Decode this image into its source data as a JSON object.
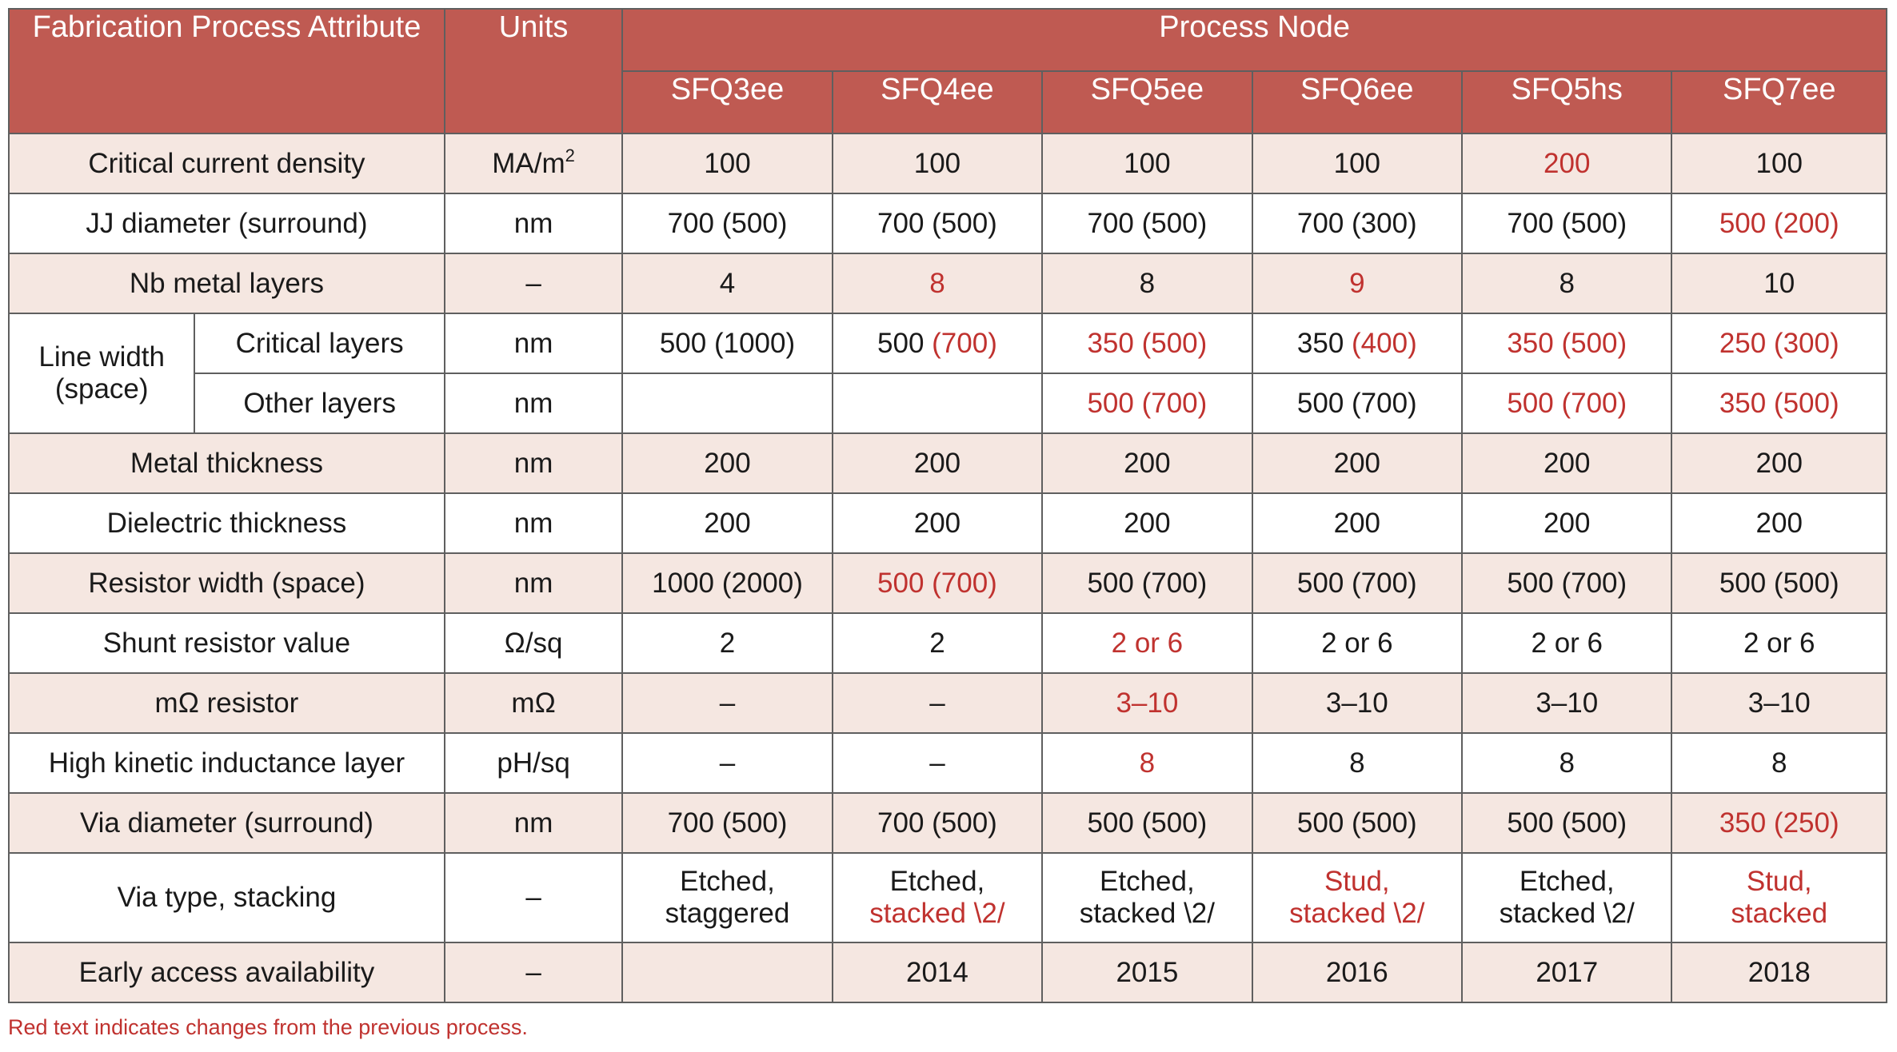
{
  "header": {
    "attribute": "Fabrication Process Attribute",
    "units": "Units",
    "process_node": "Process Node",
    "nodes": [
      "SFQ3ee",
      "SFQ4ee",
      "SFQ5ee",
      "SFQ6ee",
      "SFQ5hs",
      "SFQ7ee"
    ]
  },
  "rows": {
    "critical_current_density": {
      "label": "Critical current density",
      "unit": "MA/m",
      "unit_sup": "2",
      "values": [
        "100",
        "100",
        "100",
        "100",
        "200",
        "100"
      ]
    },
    "jj_diameter": {
      "label": "JJ diameter (surround)",
      "unit": "nm",
      "values": [
        "700 (500)",
        "700 (500)",
        "700 (500)",
        "700 (300)",
        "700 (500)",
        "500 (200)"
      ]
    },
    "nb_metal_layers": {
      "label": "Nb metal layers",
      "unit": "–",
      "values": [
        "4",
        "8",
        "8",
        "9",
        "8",
        "10"
      ]
    },
    "line_width": {
      "group_label": "Line width (space)",
      "critical": {
        "label": "Critical layers",
        "unit": "nm",
        "values": [
          {
            "a": "500 (1000)",
            "b": ""
          },
          {
            "a": "500 ",
            "b": "(700)"
          },
          {
            "a": "",
            "b": "350 (500)"
          },
          {
            "a": "350 ",
            "b": "(400)"
          },
          {
            "a": "",
            "b": "350 (500)"
          },
          {
            "a": "",
            "b": "250 (300)"
          }
        ]
      },
      "other": {
        "label": "Other layers",
        "unit": "nm",
        "values": [
          "",
          "",
          "500 (700)",
          "500 (700)",
          "500 (700)",
          "350 (500)"
        ]
      }
    },
    "metal_thickness": {
      "label": "Metal thickness",
      "unit": "nm",
      "values": [
        "200",
        "200",
        "200",
        "200",
        "200",
        "200"
      ]
    },
    "dielectric_thickness": {
      "label": "Dielectric thickness",
      "unit": "nm",
      "values": [
        "200",
        "200",
        "200",
        "200",
        "200",
        "200"
      ]
    },
    "resistor_width": {
      "label": "Resistor width (space)",
      "unit": "nm",
      "values": [
        "1000 (2000)",
        "500 (700)",
        "500 (700)",
        "500 (700)",
        "500 (700)",
        "500 (500)"
      ]
    },
    "shunt_resistor": {
      "label": "Shunt resistor value",
      "unit": "Ω/sq",
      "values": [
        "2",
        "2",
        "2 or 6",
        "2 or 6",
        "2 or 6",
        "2 or 6"
      ]
    },
    "mohm_resistor": {
      "label": "mΩ resistor",
      "unit": "mΩ",
      "values": [
        "–",
        "–",
        "3–10",
        "3–10",
        "3–10",
        "3–10"
      ]
    },
    "high_kinetic": {
      "label": "High kinetic inductance layer",
      "unit": "pH/sq",
      "values": [
        "–",
        "–",
        "8",
        "8",
        "8",
        "8"
      ]
    },
    "via_diameter": {
      "label": "Via diameter (surround)",
      "unit": "nm",
      "values": [
        "700 (500)",
        "700 (500)",
        "500 (500)",
        "500 (500)",
        "500 (500)",
        "350 (250)"
      ]
    },
    "via_type": {
      "label": "Via type, stacking",
      "unit": "–",
      "values": [
        {
          "l1": "Etched,",
          "l2": "staggered"
        },
        {
          "l1": "Etched,",
          "l2": "stacked \\2/"
        },
        {
          "l1": "Etched,",
          "l2": "stacked \\2/"
        },
        {
          "l1": "Stud,",
          "l2": "stacked \\2/"
        },
        {
          "l1": "Etched,",
          "l2": "stacked \\2/"
        },
        {
          "l1": "Stud,",
          "l2": "stacked"
        }
      ]
    },
    "early_access": {
      "label": "Early access availability",
      "unit": "–",
      "values": [
        "",
        "2014",
        "2015",
        "2016",
        "2017",
        "2018"
      ]
    }
  },
  "footnote": "Red text indicates changes from the previous process.",
  "colors": {
    "header_bg": "#bf5a52",
    "shade_bg": "#f5e7e1",
    "change_red": "#c0322f",
    "border": "#5f5f5f"
  }
}
